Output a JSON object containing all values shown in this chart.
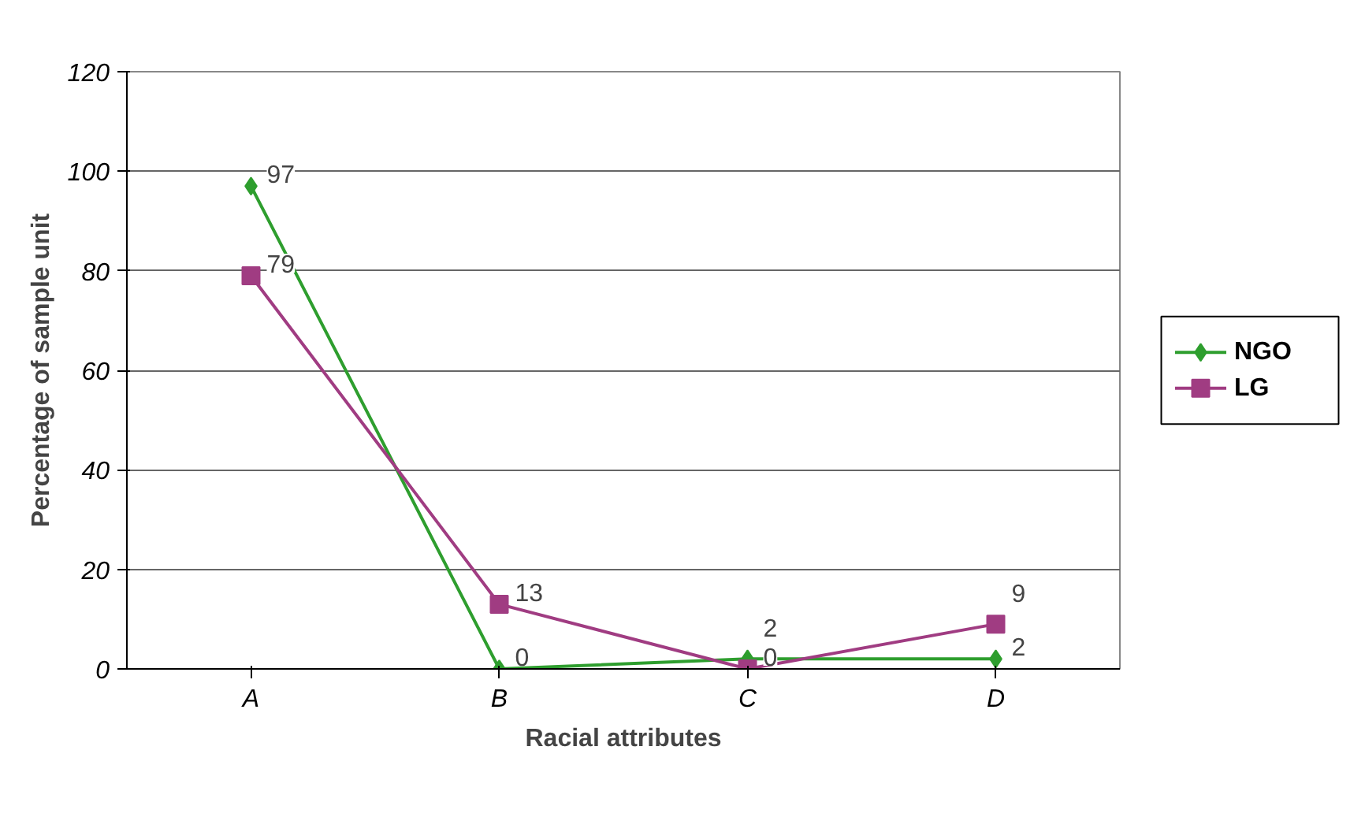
{
  "chart_data": {
    "type": "line",
    "xlabel": "Racial attributes",
    "ylabel": "Percentage of sample unit",
    "categories": [
      "A",
      "B",
      "C",
      "D"
    ],
    "series": [
      {
        "name": "NGO",
        "color": "#2e9e2e",
        "values": [
          97,
          0,
          2,
          2
        ],
        "marker": "diamond"
      },
      {
        "name": "LG",
        "color": "#a03c82",
        "values": [
          79,
          13,
          0,
          9
        ],
        "marker": "square"
      }
    ],
    "ylim": [
      0,
      120
    ],
    "yticks": [
      0,
      20,
      40,
      60,
      80,
      100,
      120
    ],
    "grid": "y",
    "legend": "right",
    "data_labels": true
  }
}
